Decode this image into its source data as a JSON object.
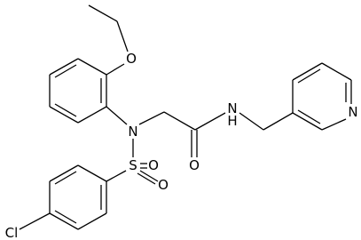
{
  "atoms": [
    {
      "label": "O"
    },
    {
      "label": "N"
    },
    {
      "label": "S"
    },
    {
      "label": "O"
    },
    {
      "label": "O"
    },
    {
      "label": "O"
    },
    {
      "label": "N"
    },
    {
      "label": "H"
    },
    {
      "label": "N"
    },
    {
      "label": "Cl"
    }
  ]
}
